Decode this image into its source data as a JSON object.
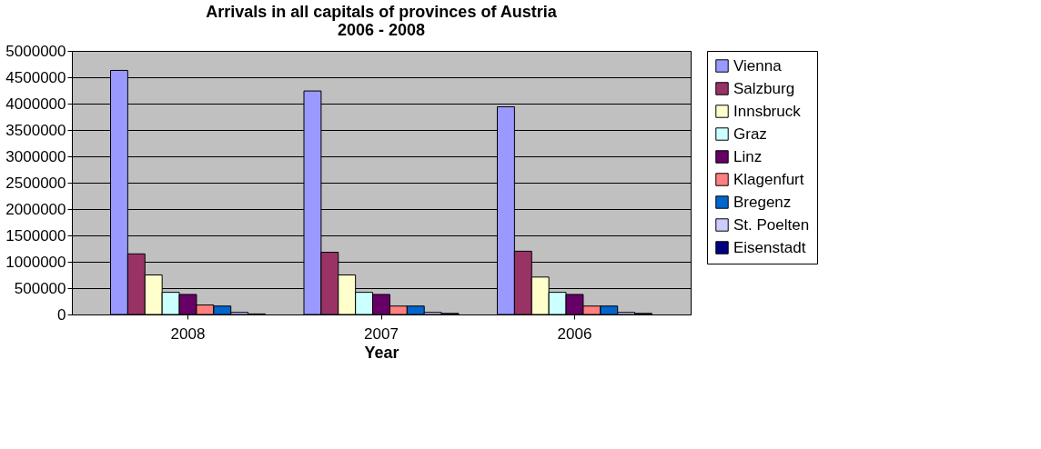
{
  "chart_data": {
    "type": "bar",
    "title": "Arrivals in all capitals of provinces of Austria\n2006 - 2008",
    "xlabel": "Year",
    "categories": [
      "2008",
      "2007",
      "2006"
    ],
    "series": [
      {
        "name": "Vienna",
        "color": "#9999ff",
        "values": [
          4630000,
          4240000,
          3940000
        ]
      },
      {
        "name": "Salzburg",
        "color": "#993366",
        "values": [
          1150000,
          1180000,
          1200000
        ]
      },
      {
        "name": "Innsbruck",
        "color": "#ffffcc",
        "values": [
          750000,
          750000,
          710000
        ]
      },
      {
        "name": "Graz",
        "color": "#ccffff",
        "values": [
          420000,
          420000,
          420000
        ]
      },
      {
        "name": "Linz",
        "color": "#660066",
        "values": [
          380000,
          380000,
          380000
        ]
      },
      {
        "name": "Klagenfurt",
        "color": "#ff8080",
        "values": [
          180000,
          160000,
          160000
        ]
      },
      {
        "name": "Bregenz",
        "color": "#0066cc",
        "values": [
          160000,
          160000,
          160000
        ]
      },
      {
        "name": "St. Poelten",
        "color": "#ccccff",
        "values": [
          40000,
          40000,
          40000
        ]
      },
      {
        "name": "Eisenstadt",
        "color": "#000080",
        "values": [
          10000,
          20000,
          20000
        ]
      }
    ],
    "ylim": [
      0,
      5000000
    ],
    "yticks": [
      0,
      500000,
      1000000,
      1500000,
      2000000,
      2500000,
      3000000,
      3500000,
      4000000,
      4500000,
      5000000
    ],
    "grid": "y",
    "legend": "right"
  }
}
